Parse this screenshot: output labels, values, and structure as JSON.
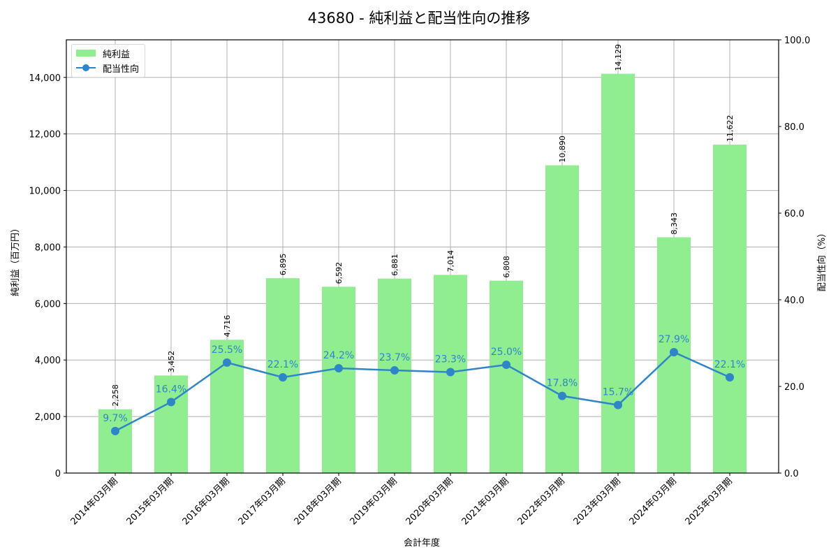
{
  "title": "43680 - 純利益と配当性向の推移",
  "legend": {
    "bar_label": "純利益",
    "line_label": "配当性向"
  },
  "axes": {
    "xlabel": "会計年度",
    "ylabel_left": "純利益（百万円）",
    "ylabel_right": "配当性向（%）",
    "left_ticks": [
      "0",
      "2,000",
      "4,000",
      "6,000",
      "8,000",
      "10,000",
      "12,000",
      "14,000"
    ],
    "right_ticks": [
      "0.0",
      "20.0",
      "40.0",
      "60.0",
      "80.0",
      "100.0"
    ]
  },
  "colors": {
    "bar": "#90ee90",
    "line": "#2e86c8",
    "grid": "#b0b0b0"
  },
  "chart_data": {
    "type": "bar+line",
    "title": "43680 - 純利益と配当性向の推移",
    "xlabel": "会計年度",
    "ylabel": "純利益（百万円）",
    "y2label": "配当性向（%）",
    "categories": [
      "2014年03月期",
      "2015年03月期",
      "2016年03月期",
      "2017年03月期",
      "2018年03月期",
      "2019年03月期",
      "2020年03月期",
      "2021年03月期",
      "2022年03月期",
      "2023年03月期",
      "2024年03月期",
      "2025年03月期"
    ],
    "series": [
      {
        "name": "純利益",
        "type": "bar",
        "axis": "left",
        "values": [
          2258,
          3452,
          4716,
          6895,
          6592,
          6881,
          7014,
          6808,
          10890,
          14129,
          8343,
          11622
        ],
        "labels": [
          "2,258",
          "3,452",
          "4,716",
          "6,895",
          "6,592",
          "6,881",
          "7,014",
          "6,808",
          "10,890",
          "14,129",
          "8,343",
          "11,622"
        ]
      },
      {
        "name": "配当性向",
        "type": "line",
        "axis": "right",
        "values": [
          9.7,
          16.4,
          25.5,
          22.1,
          24.2,
          23.7,
          23.3,
          25.0,
          17.8,
          15.7,
          27.9,
          22.1
        ],
        "labels": [
          "9.7%",
          "16.4%",
          "25.5%",
          "22.1%",
          "24.2%",
          "23.7%",
          "23.3%",
          "25.0%",
          "17.8%",
          "15.7%",
          "27.9%",
          "22.1%"
        ]
      }
    ],
    "ylim": [
      0,
      15330
    ],
    "y2lim": [
      0,
      100
    ],
    "grid": true,
    "legend_position": "upper left"
  }
}
